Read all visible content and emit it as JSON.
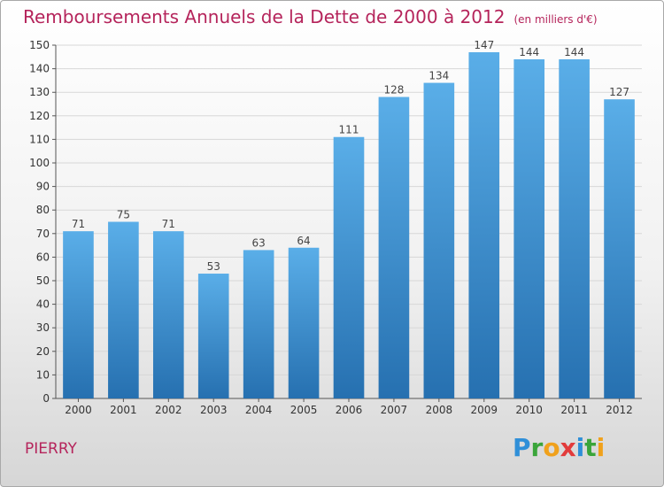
{
  "title": "Remboursements Annuels de la Dette de 2000 à 2012",
  "unit": "(en milliers d'€)",
  "location": "PIERRY",
  "logo": {
    "text": "Proxiti"
  },
  "colors": {
    "bar_light": "#5aaee8",
    "bar_dark": "#2670b0",
    "title": "#b5245b",
    "grid": "#d7d7d7"
  },
  "chart_data": {
    "type": "bar",
    "title": "Remboursements Annuels de la Dette de 2000 à 2012",
    "xlabel": "",
    "ylabel": "",
    "categories": [
      "2000",
      "2001",
      "2002",
      "2003",
      "2004",
      "2005",
      "2006",
      "2007",
      "2008",
      "2009",
      "2010",
      "2011",
      "2012"
    ],
    "values": [
      71,
      75,
      71,
      53,
      63,
      64,
      111,
      128,
      134,
      147,
      144,
      144,
      127
    ],
    "ylim": [
      0,
      150
    ],
    "yticks": [
      0,
      10,
      20,
      30,
      40,
      50,
      60,
      70,
      80,
      90,
      100,
      110,
      120,
      130,
      140,
      150
    ],
    "grid": true,
    "data_labels": true
  }
}
